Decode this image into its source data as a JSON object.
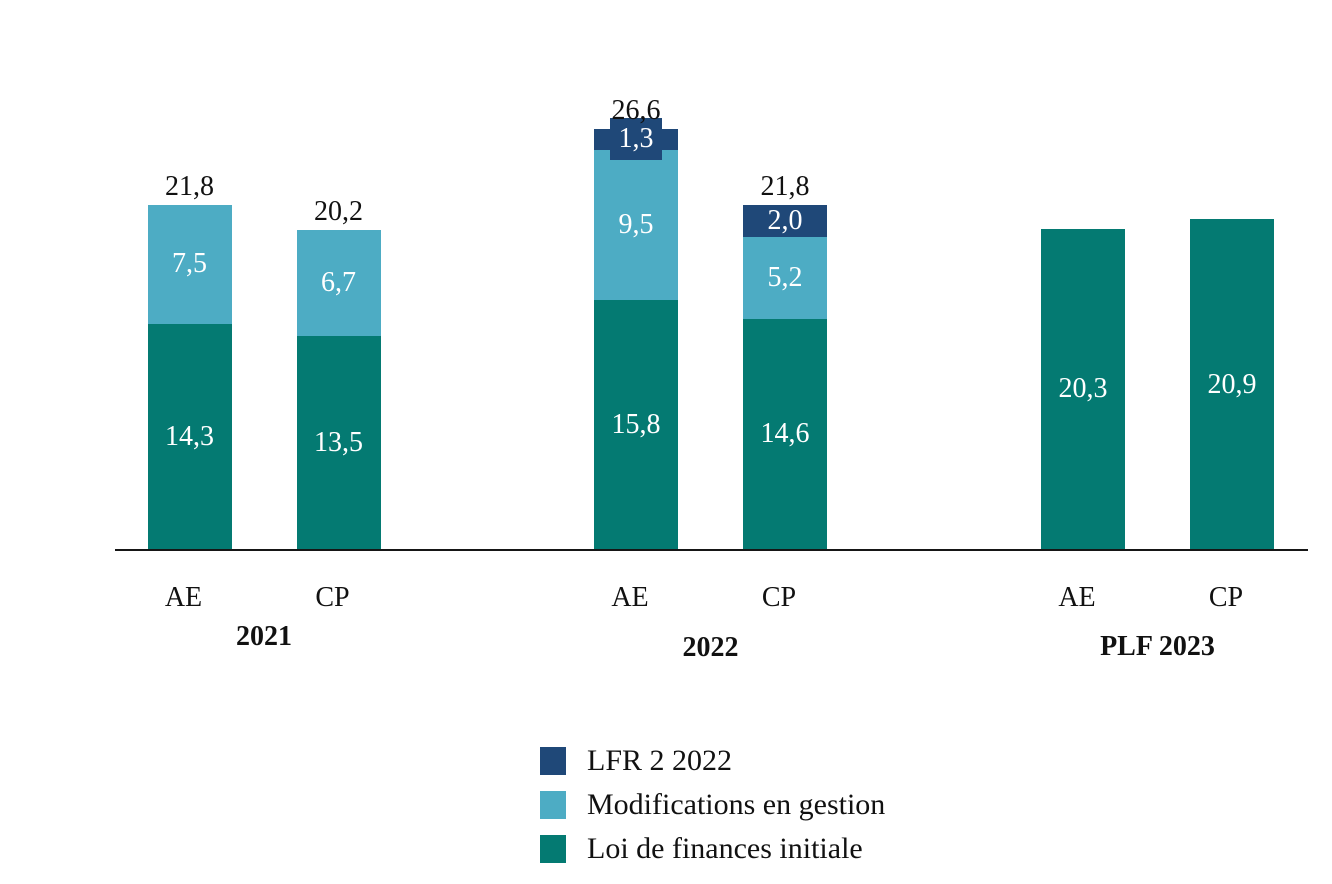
{
  "chart_data": {
    "type": "bar",
    "stacked": true,
    "title": "",
    "xlabel": "",
    "ylabel": "",
    "value_format": "comma-decimal",
    "axis": {
      "baseline_visible": true,
      "gridlines": false,
      "tick_labels_visible": false,
      "implied_value_range": [
        0,
        26.6
      ]
    },
    "legend": {
      "position": "bottom-center-left",
      "items": [
        {
          "name": "LFR 2 2022",
          "color": "#1f4878"
        },
        {
          "name": "Modifications en gestion",
          "color": "#4dacc4"
        },
        {
          "name": "Loi de finances initiale",
          "color": "#047a72"
        }
      ]
    },
    "groups": [
      {
        "label": "2021",
        "bars": [
          {
            "category": "AE",
            "total": 21.8,
            "total_label": "21,8",
            "segments": [
              {
                "series": "Loi de finances initiale",
                "value": 14.3,
                "label": "14,3"
              },
              {
                "series": "Modifications en gestion",
                "value": 7.5,
                "label": "7,5"
              }
            ]
          },
          {
            "category": "CP",
            "total": 20.2,
            "total_label": "20,2",
            "segments": [
              {
                "series": "Loi de finances initiale",
                "value": 13.5,
                "label": "13,5"
              },
              {
                "series": "Modifications en gestion",
                "value": 6.7,
                "label": "6,7"
              }
            ]
          }
        ]
      },
      {
        "label": "2022",
        "bars": [
          {
            "category": "AE",
            "total": 26.6,
            "total_label": "26,6",
            "segments": [
              {
                "series": "Loi de finances initiale",
                "value": 15.8,
                "label": "15,8"
              },
              {
                "series": "Modifications en gestion",
                "value": 9.5,
                "label": "9,5"
              },
              {
                "series": "LFR 2 2022",
                "value": 1.3,
                "label": "1,3"
              }
            ]
          },
          {
            "category": "CP",
            "total": 21.8,
            "total_label": "21,8",
            "segments": [
              {
                "series": "Loi de finances initiale",
                "value": 14.6,
                "label": "14,6"
              },
              {
                "series": "Modifications en gestion",
                "value": 5.2,
                "label": "5,2"
              },
              {
                "series": "LFR 2 2022",
                "value": 2.0,
                "label": "2,0"
              }
            ]
          }
        ]
      },
      {
        "label": "PLF 2023",
        "bars": [
          {
            "category": "AE",
            "total": 20.3,
            "segments": [
              {
                "series": "Loi de finances initiale",
                "value": 20.3,
                "label": "20,3"
              }
            ]
          },
          {
            "category": "CP",
            "total": 20.9,
            "segments": [
              {
                "series": "Loi de finances initiale",
                "value": 20.9,
                "label": "20,9"
              }
            ]
          }
        ]
      }
    ]
  }
}
